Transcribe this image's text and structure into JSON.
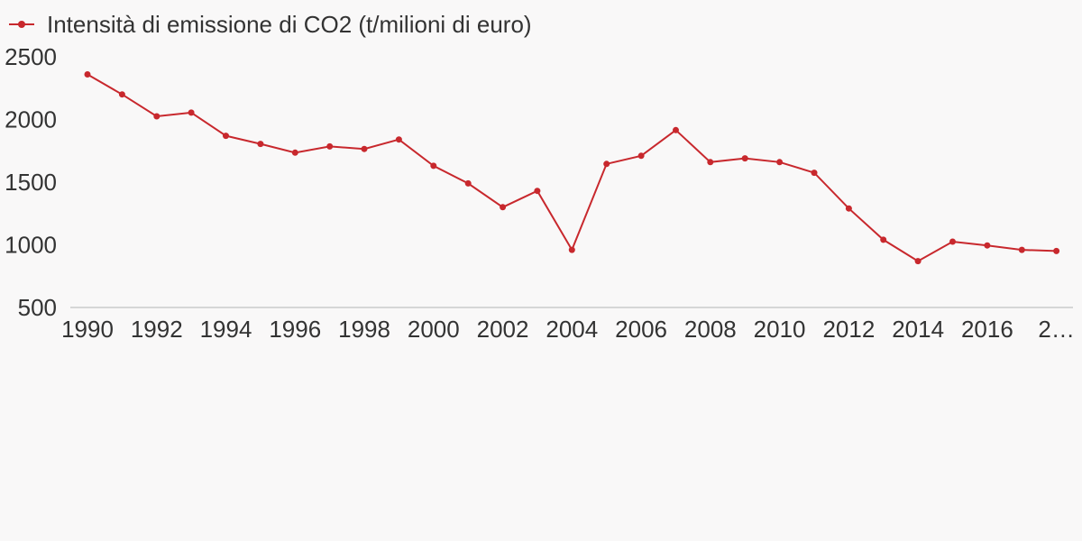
{
  "chart_data": {
    "type": "line",
    "title": "",
    "xlabel": "",
    "ylabel": "",
    "ylim": [
      500,
      2500
    ],
    "yticks": [
      2500,
      2000,
      1500,
      1000,
      500
    ],
    "x_tick_labels": [
      "1990",
      "1992",
      "1994",
      "1996",
      "1998",
      "2000",
      "2002",
      "2004",
      "2006",
      "2008",
      "2010",
      "2012",
      "2014",
      "2016",
      "2…"
    ],
    "legend_position": "top-left",
    "grid": false,
    "series": [
      {
        "name": "Intensità di emissione di CO2 (t/milioni di euro)",
        "color": "#c8282d",
        "x": [
          1990,
          1991,
          1992,
          1993,
          1994,
          1995,
          1996,
          1997,
          1998,
          1999,
          2000,
          2001,
          2002,
          2003,
          2004,
          2005,
          2006,
          2007,
          2008,
          2009,
          2010,
          2011,
          2012,
          2013,
          2014,
          2015,
          2016,
          2017,
          2018
        ],
        "values": [
          2360,
          2200,
          2025,
          2055,
          1870,
          1805,
          1735,
          1785,
          1765,
          1840,
          1630,
          1490,
          1300,
          1430,
          960,
          1645,
          1710,
          1915,
          1660,
          1690,
          1660,
          1575,
          1290,
          1040,
          870,
          1025,
          995,
          960,
          950
        ]
      }
    ]
  }
}
